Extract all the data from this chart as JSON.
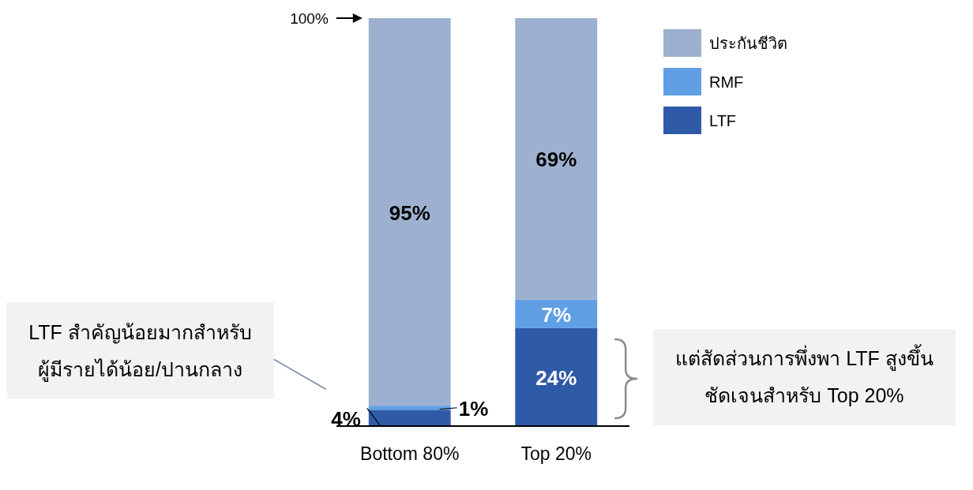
{
  "chart_data": {
    "type": "bar",
    "stacked": true,
    "categories": [
      "Bottom 80%",
      "Top 20%"
    ],
    "series": [
      {
        "name": "LTF",
        "color": "#2f5aa8",
        "values": [
          4,
          24
        ],
        "value_labels": [
          "4%",
          "24%"
        ]
      },
      {
        "name": "RMF",
        "color": "#619fe5",
        "values": [
          1,
          7
        ],
        "value_labels": [
          "1%",
          "7%"
        ]
      },
      {
        "name": "ประกันชีวิต",
        "color": "#9eb0cf",
        "values": [
          95,
          69
        ],
        "value_labels": [
          "95%",
          "69%"
        ]
      }
    ],
    "ylim": [
      0,
      100
    ],
    "tick_labels": "x",
    "legend": "top right",
    "annotations": [
      "100%",
      "LTF สำคัญน้อยมากสำหรับ\nผู้มีรายได้น้อย/ปานกลาง",
      "แต่สัดส่วนการพึ่งพา LTF สูงขึ้น\nชัดเจนสำหรับ Top 20%"
    ]
  }
}
